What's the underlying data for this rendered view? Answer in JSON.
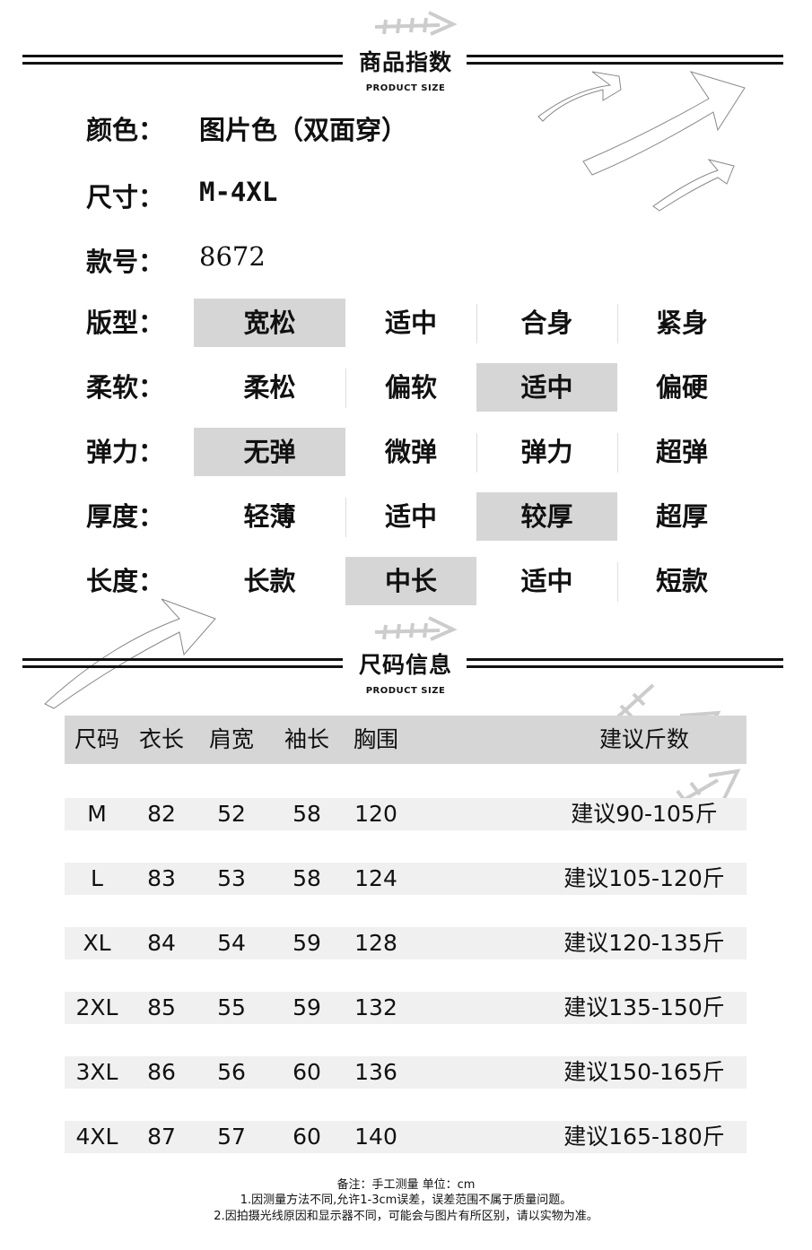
{
  "section1": {
    "title": "商品指数",
    "subtitle": "PRODUCT SIZE"
  },
  "info": [
    {
      "label": "颜色：",
      "value": "图片色（双面穿）"
    },
    {
      "label": "尺寸：",
      "value": "M-4XL"
    },
    {
      "label": "款号：",
      "value": "8672"
    }
  ],
  "attributes": [
    {
      "label": "版型：",
      "options": [
        "宽松",
        "适中",
        "合身",
        "紧身"
      ],
      "selected": 0
    },
    {
      "label": "柔软：",
      "options": [
        "柔松",
        "偏软",
        "适中",
        "偏硬"
      ],
      "selected": 2
    },
    {
      "label": "弹力：",
      "options": [
        "无弹",
        "微弹",
        "弹力",
        "超弹"
      ],
      "selected": 0
    },
    {
      "label": "厚度：",
      "options": [
        "轻薄",
        "适中",
        "较厚",
        "超厚"
      ],
      "selected": 2
    },
    {
      "label": "长度：",
      "options": [
        "长款",
        "中长",
        "适中",
        "短款"
      ],
      "selected": 1
    }
  ],
  "section2": {
    "title": "尺码信息",
    "subtitle": "PRODUCT SIZE"
  },
  "size_table": {
    "headers": [
      "尺码",
      "衣长",
      "肩宽",
      "袖长",
      "胸围",
      "建议斤数"
    ],
    "rows": [
      [
        "M",
        "82",
        "52",
        "58",
        "120",
        "建议90-105斤"
      ],
      [
        "L",
        "83",
        "53",
        "58",
        "124",
        "建议105-120斤"
      ],
      [
        "XL",
        "84",
        "54",
        "59",
        "128",
        "建议120-135斤"
      ],
      [
        "2XL",
        "85",
        "55",
        "59",
        "132",
        "建议135-150斤"
      ],
      [
        "3XL",
        "86",
        "56",
        "60",
        "136",
        "建议150-165斤"
      ],
      [
        "4XL",
        "87",
        "57",
        "60",
        "140",
        "建议165-180斤"
      ]
    ]
  },
  "notes": [
    "备注：手工测量 单位：cm",
    "1.因测量方法不同,允许1-3cm误差，误差范围不属于质量问题。",
    "2.因拍摄光线原因和显示器不同，可能会与图片有所区别，请以实物为准。"
  ],
  "colors": {
    "highlight": "#d6d6d6",
    "row_band": "#f0f0f0",
    "text": "#111111"
  }
}
